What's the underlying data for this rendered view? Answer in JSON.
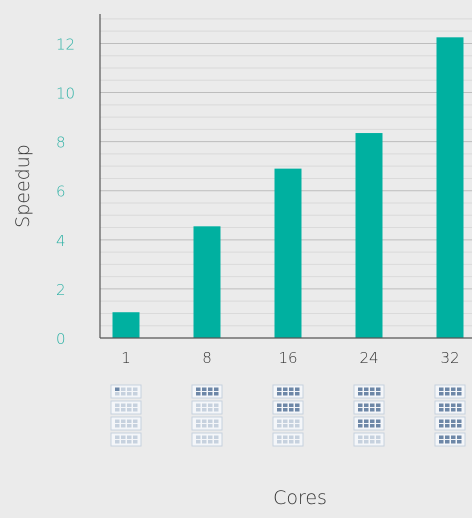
{
  "chart_data": {
    "type": "bar",
    "title": "",
    "xlabel": "Cores",
    "ylabel": "Speedup",
    "categories": [
      "1",
      "8",
      "16",
      "24",
      "32"
    ],
    "values": [
      1.05,
      4.55,
      6.9,
      8.35,
      12.25
    ],
    "cores": [
      1,
      8,
      16,
      24,
      32
    ],
    "ylim": [
      0,
      13.2
    ],
    "yticks": [
      "0",
      "2",
      "4",
      "6",
      "8",
      "10",
      "12"
    ],
    "grid": true,
    "bar_color": "#00b0a0",
    "background_color": "#ebebeb",
    "grid_color": "#bdbdbd",
    "minor_grid_color": "#dadada",
    "core_icon_grids": 4,
    "core_icon_cells_per_grid": 8,
    "core_icon_active_color": "#6d87a7",
    "core_icon_idle_color": "#c6d1de"
  }
}
